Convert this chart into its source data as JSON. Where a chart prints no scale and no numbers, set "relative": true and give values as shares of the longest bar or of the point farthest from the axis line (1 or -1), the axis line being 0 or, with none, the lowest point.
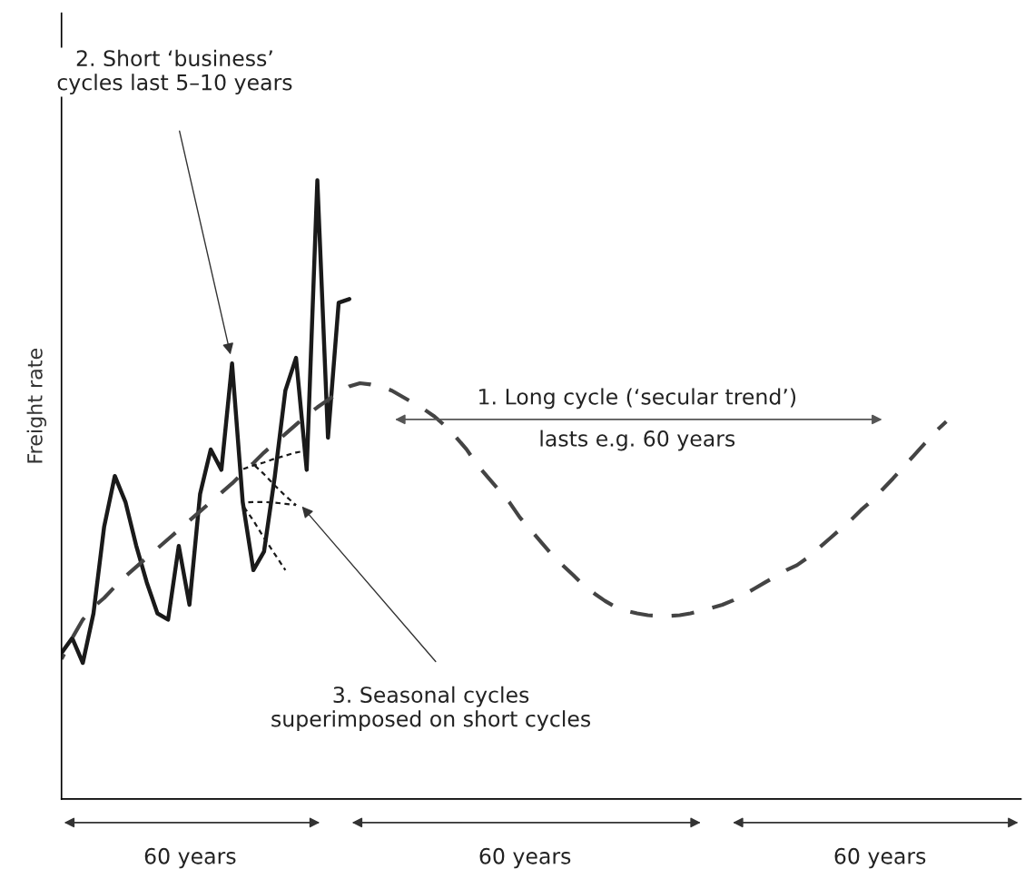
{
  "chart_data": {
    "type": "line",
    "relative": true,
    "ylabel": "Freight rate",
    "tick_labels": false,
    "categories": [
      null,
      null,
      null,
      null,
      null,
      null,
      null,
      null,
      null,
      null,
      null,
      null,
      null,
      null,
      null,
      null,
      null,
      null,
      null,
      null,
      null,
      null,
      null,
      null,
      null,
      null,
      null,
      null,
      null,
      null,
      null,
      null,
      null,
      null,
      null,
      null,
      null,
      null,
      null,
      null,
      null,
      null,
      null,
      null,
      null,
      null,
      null,
      null,
      null,
      null,
      null,
      null,
      null,
      null,
      null,
      null,
      null,
      null,
      null,
      null,
      null,
      null,
      null,
      null,
      null,
      null,
      null,
      null,
      null,
      null,
      null,
      null,
      null,
      null,
      null,
      null,
      null,
      null,
      null,
      null,
      null,
      null,
      null,
      null,
      null,
      null,
      null,
      null,
      null,
      null,
      null
    ],
    "series": [
      {
        "color": "#1a1a1a",
        "line_style": "solid",
        "values": [
          0.236,
          0.26,
          0.22,
          0.3,
          0.44,
          0.522,
          0.48,
          0.41,
          0.35,
          0.3,
          0.29,
          0.409,
          0.314,
          0.493,
          0.565,
          0.532,
          0.704,
          0.48,
          0.37,
          0.4,
          0.52,
          0.66,
          0.713,
          0.532,
          1.0,
          0.584,
          0.802,
          0.808,
          null,
          null,
          null,
          null,
          null,
          null,
          null,
          null,
          null,
          null,
          null,
          null,
          null,
          null,
          null,
          null,
          null,
          null,
          null,
          null,
          null,
          null,
          null,
          null,
          null,
          null,
          null,
          null,
          null,
          null,
          null,
          null,
          null,
          null,
          null,
          null,
          null,
          null,
          null,
          null,
          null,
          null,
          null,
          null,
          null,
          null,
          null,
          null,
          null,
          null,
          null,
          null,
          null,
          null,
          null,
          null,
          null,
          null,
          null,
          null,
          null,
          null,
          null
        ]
      },
      {
        "color": "#444444",
        "line_style": "dashed",
        "values": [
          0.226,
          0.26,
          0.29,
          0.31,
          0.325,
          0.343,
          0.36,
          0.375,
          0.39,
          0.405,
          0.42,
          0.435,
          0.45,
          0.465,
          0.48,
          0.495,
          0.51,
          0.527,
          0.543,
          0.56,
          0.575,
          0.59,
          0.605,
          0.62,
          0.633,
          0.645,
          0.657,
          0.667,
          0.672,
          0.67,
          0.666,
          0.66,
          0.65,
          0.64,
          0.63,
          0.618,
          0.603,
          0.585,
          0.565,
          0.54,
          0.52,
          0.5,
          0.48,
          0.455,
          0.435,
          0.415,
          0.395,
          0.378,
          0.362,
          0.345,
          0.332,
          0.32,
          0.31,
          0.304,
          0.3,
          0.297,
          0.296,
          0.296,
          0.297,
          0.3,
          0.304,
          0.309,
          0.314,
          0.321,
          0.33,
          0.34,
          0.35,
          0.36,
          0.37,
          0.378,
          0.39,
          0.405,
          0.42,
          0.435,
          0.45,
          0.467,
          0.482,
          0.5,
          0.518,
          0.537,
          0.556,
          0.575,
          0.594,
          0.61,
          null,
          null,
          null,
          null,
          null,
          null,
          null
        ]
      },
      {
        "color": "#1a1a1a",
        "line_style": "dotted",
        "values": [
          null,
          null,
          null,
          null,
          null,
          null,
          null,
          null,
          null,
          null,
          null,
          null,
          null,
          null,
          null,
          null,
          null,
          0.533,
          0.539,
          0.544,
          0.55,
          0.555,
          0.56,
          0.563,
          null,
          null,
          null,
          null,
          null,
          null,
          null,
          null,
          null,
          null,
          null,
          null,
          null,
          null,
          null,
          null,
          null,
          null,
          null,
          null,
          null,
          null,
          null,
          null,
          null,
          null,
          null,
          null,
          null,
          null,
          null,
          null,
          null,
          null,
          null,
          null,
          null,
          null,
          null,
          null,
          null,
          null,
          null,
          null,
          null,
          null,
          null,
          null,
          null,
          null,
          null,
          null,
          null,
          null,
          null,
          null,
          null,
          null,
          null,
          null,
          null,
          null,
          null,
          null,
          null,
          null,
          null
        ]
      },
      {
        "color": "#1a1a1a",
        "line_style": "dotted",
        "values": [
          null,
          null,
          null,
          null,
          null,
          null,
          null,
          null,
          null,
          null,
          null,
          null,
          null,
          null,
          null,
          null,
          null,
          null,
          0.541,
          0.525,
          0.507,
          0.49,
          0.475,
          null,
          null,
          null,
          null,
          null,
          null,
          null,
          null,
          null,
          null,
          null,
          null,
          null,
          null,
          null,
          null,
          null,
          null,
          null,
          null,
          null,
          null,
          null,
          null,
          null,
          null,
          null,
          null,
          null,
          null,
          null,
          null,
          null,
          null,
          null,
          null,
          null,
          null,
          null,
          null,
          null,
          null,
          null,
          null,
          null,
          null,
          null,
          null,
          null,
          null,
          null,
          null,
          null,
          null,
          null,
          null,
          null,
          null,
          null,
          null,
          null,
          null,
          null,
          null,
          null,
          null,
          null,
          null
        ]
      },
      {
        "color": "#1a1a1a",
        "line_style": "dotted",
        "values": [
          null,
          null,
          null,
          null,
          null,
          null,
          null,
          null,
          null,
          null,
          null,
          null,
          null,
          null,
          null,
          null,
          null,
          0.479,
          0.48,
          0.48,
          0.479,
          0.477,
          0.475,
          null,
          null,
          null,
          null,
          null,
          null,
          null,
          null,
          null,
          null,
          null,
          null,
          null,
          null,
          null,
          null,
          null,
          null,
          null,
          null,
          null,
          null,
          null,
          null,
          null,
          null,
          null,
          null,
          null,
          null,
          null,
          null,
          null,
          null,
          null,
          null,
          null,
          null,
          null,
          null,
          null,
          null,
          null,
          null,
          null,
          null,
          null,
          null,
          null,
          null,
          null,
          null,
          null,
          null,
          null,
          null,
          null,
          null,
          null,
          null,
          null,
          null,
          null,
          null,
          null,
          null,
          null,
          null
        ]
      },
      {
        "color": "#1a1a1a",
        "line_style": "dotted",
        "values": [
          null,
          null,
          null,
          null,
          null,
          null,
          null,
          null,
          null,
          null,
          null,
          null,
          null,
          null,
          null,
          null,
          null,
          0.475,
          0.45,
          0.422,
          0.396,
          0.37,
          null,
          null,
          null,
          null,
          null,
          null,
          null,
          null,
          null,
          null,
          null,
          null,
          null,
          null,
          null,
          null,
          null,
          null,
          null,
          null,
          null,
          null,
          null,
          null,
          null,
          null,
          null,
          null,
          null,
          null,
          null,
          null,
          null,
          null,
          null,
          null,
          null,
          null,
          null,
          null,
          null,
          null,
          null,
          null,
          null,
          null,
          null,
          null,
          null,
          null,
          null,
          null,
          null,
          null,
          null,
          null,
          null,
          null,
          null,
          null,
          null,
          null,
          null,
          null,
          null,
          null,
          null,
          null,
          null
        ]
      }
    ],
    "annotations": [
      "2. Short ‘business’\ncycles last 5–10 years",
      "3. Seasonal cycles\nsuperimposed on short cycles",
      "1. Long cycle (‘secular trend’)\nlasts e.g. 60 years",
      "60 years",
      "60 years",
      "60 years"
    ]
  }
}
